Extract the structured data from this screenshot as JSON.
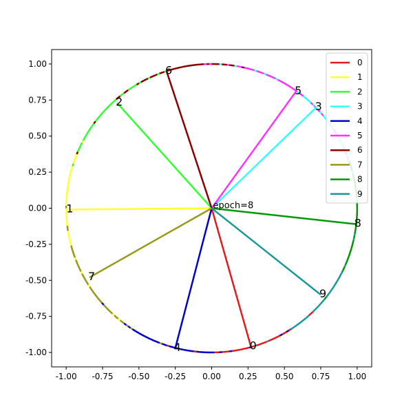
{
  "chart_data": {
    "type": "line",
    "title": "",
    "xlabel": "",
    "ylabel": "",
    "xlim": [
      -1.1,
      1.1
    ],
    "ylim": [
      -1.1,
      1.1
    ],
    "xticks": [
      "-1.00",
      "-0.75",
      "-0.50",
      "-0.25",
      "0.00",
      "0.25",
      "0.50",
      "0.75",
      "1.00"
    ],
    "yticks": [
      "1.00",
      "0.75",
      "0.50",
      "0.25",
      "0.00",
      "-0.25",
      "-0.50",
      "-0.75",
      "-1.00"
    ],
    "annotation": "epoch=8",
    "grid": false,
    "legend_position": "top-right",
    "series": [
      {
        "name": "0",
        "color": "#e31a1c",
        "label": "0",
        "x": 0.27,
        "y": -0.96
      },
      {
        "name": "1",
        "color": "#ffff33",
        "label": "1",
        "x": -0.99,
        "y": -0.01
      },
      {
        "name": "2",
        "color": "#33ff33",
        "label": "2",
        "x": -0.65,
        "y": 0.73
      },
      {
        "name": "3",
        "color": "#33ffff",
        "label": "3",
        "x": 0.72,
        "y": 0.7
      },
      {
        "name": "4",
        "color": "#0000cc",
        "label": "4",
        "x": -0.25,
        "y": -0.97
      },
      {
        "name": "5",
        "color": "#ff33ff",
        "label": "5",
        "x": 0.58,
        "y": 0.81
      },
      {
        "name": "6",
        "color": "#8b0000",
        "label": "6",
        "x": -0.31,
        "y": 0.95
      },
      {
        "name": "7",
        "color": "#999919",
        "label": "7",
        "x": -0.84,
        "y": -0.48
      },
      {
        "name": "8",
        "color": "#009900",
        "label": "8",
        "x": 0.99,
        "y": -0.11
      },
      {
        "name": "9",
        "color": "#199999",
        "label": "9",
        "x": 0.75,
        "y": -0.6
      }
    ]
  }
}
